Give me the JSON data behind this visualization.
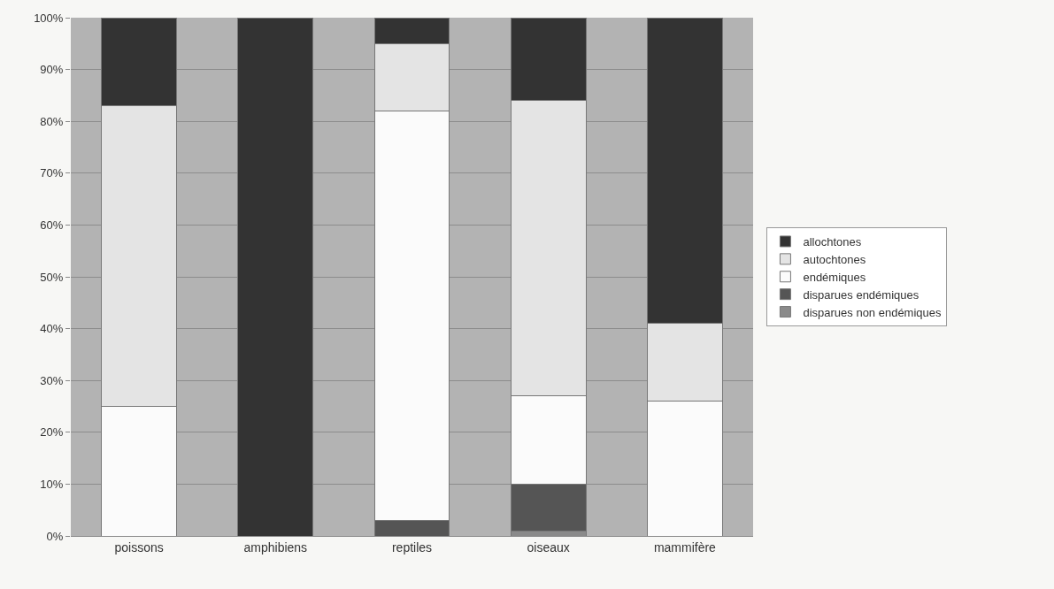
{
  "chart_data": {
    "type": "bar",
    "stacked": true,
    "categories": [
      "poissons",
      "amphibiens",
      "reptiles",
      "oiseaux",
      "mammifère"
    ],
    "series": [
      {
        "name": "disparues non endémiques",
        "color": "#8a8a8a",
        "values": [
          0,
          0,
          0,
          1,
          0
        ]
      },
      {
        "name": "disparues endémiques",
        "color": "#555555",
        "values": [
          0,
          0,
          3,
          9,
          0
        ]
      },
      {
        "name": "endémiques",
        "color": "#fbfbfb",
        "values": [
          25,
          0,
          79,
          17,
          26
        ]
      },
      {
        "name": "autochtones",
        "color": "#e4e4e4",
        "values": [
          58,
          0,
          13,
          57,
          15
        ]
      },
      {
        "name": "allochtones",
        "color": "#333333",
        "values": [
          17,
          100,
          5,
          16,
          59
        ]
      }
    ],
    "ylim": [
      0,
      100
    ],
    "yticks": [
      {
        "value": 0,
        "label": "0%"
      },
      {
        "value": 10,
        "label": "10%"
      },
      {
        "value": 20,
        "label": "20%"
      },
      {
        "value": 30,
        "label": "30%"
      },
      {
        "value": 40,
        "label": "40%"
      },
      {
        "value": 50,
        "label": "50%"
      },
      {
        "value": 60,
        "label": "60%"
      },
      {
        "value": 70,
        "label": "70%"
      },
      {
        "value": 80,
        "label": "80%"
      },
      {
        "value": 90,
        "label": "90%"
      },
      {
        "value": 100,
        "label": "100%"
      }
    ],
    "grid": "y",
    "legend": "right"
  }
}
